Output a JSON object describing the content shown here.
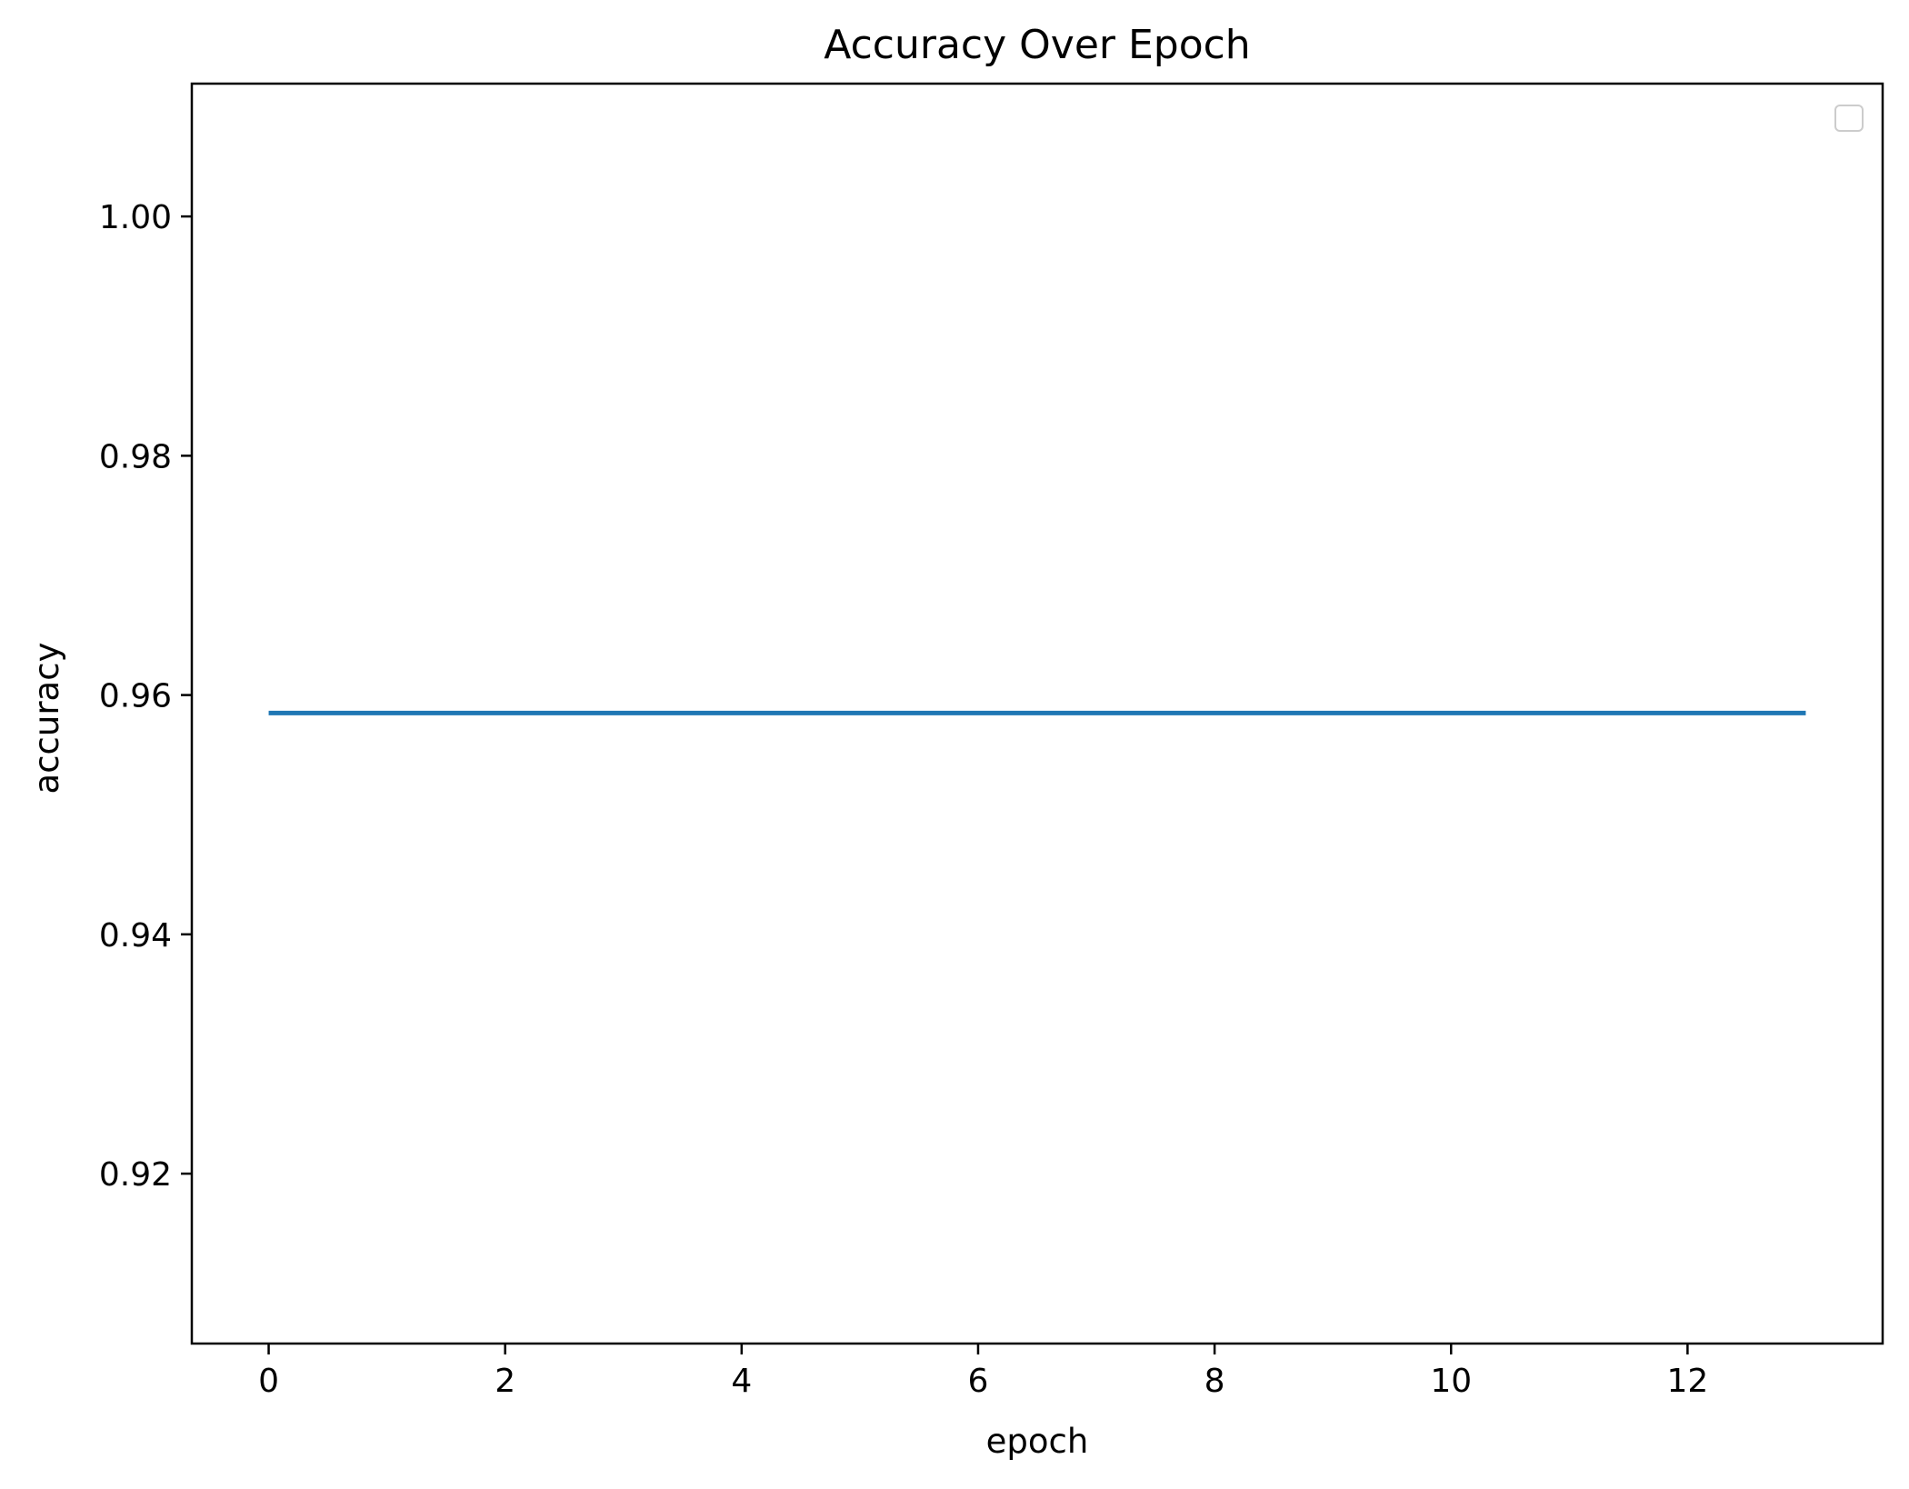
{
  "chart_data": {
    "type": "line",
    "title": "Accuracy Over Epoch",
    "xlabel": "epoch",
    "ylabel": "accuracy",
    "xlim": [
      -0.65,
      13.65
    ],
    "ylim": [
      0.9058,
      1.0111
    ],
    "x_ticks": [
      0,
      2,
      4,
      6,
      8,
      10,
      12
    ],
    "y_ticks": [
      0.92,
      0.94,
      0.96,
      0.98,
      1.0
    ],
    "x_tick_labels": [
      "0",
      "2",
      "4",
      "6",
      "8",
      "10",
      "12"
    ],
    "y_tick_labels": [
      "0.92",
      "0.94",
      "0.96",
      "0.98",
      "1.00"
    ],
    "grid": false,
    "legend": {
      "location": "upper right",
      "entries": []
    },
    "series": [
      {
        "color": "#1f77b4",
        "x": [
          0,
          1,
          2,
          3,
          4,
          5,
          6,
          7,
          8,
          9,
          10,
          11,
          12,
          13
        ],
        "y": [
          0.9585,
          0.9585,
          0.9585,
          0.9585,
          0.9585,
          0.9585,
          0.9585,
          0.9585,
          0.9585,
          0.9585,
          0.9585,
          0.9585,
          0.9585,
          0.9585
        ]
      }
    ]
  }
}
